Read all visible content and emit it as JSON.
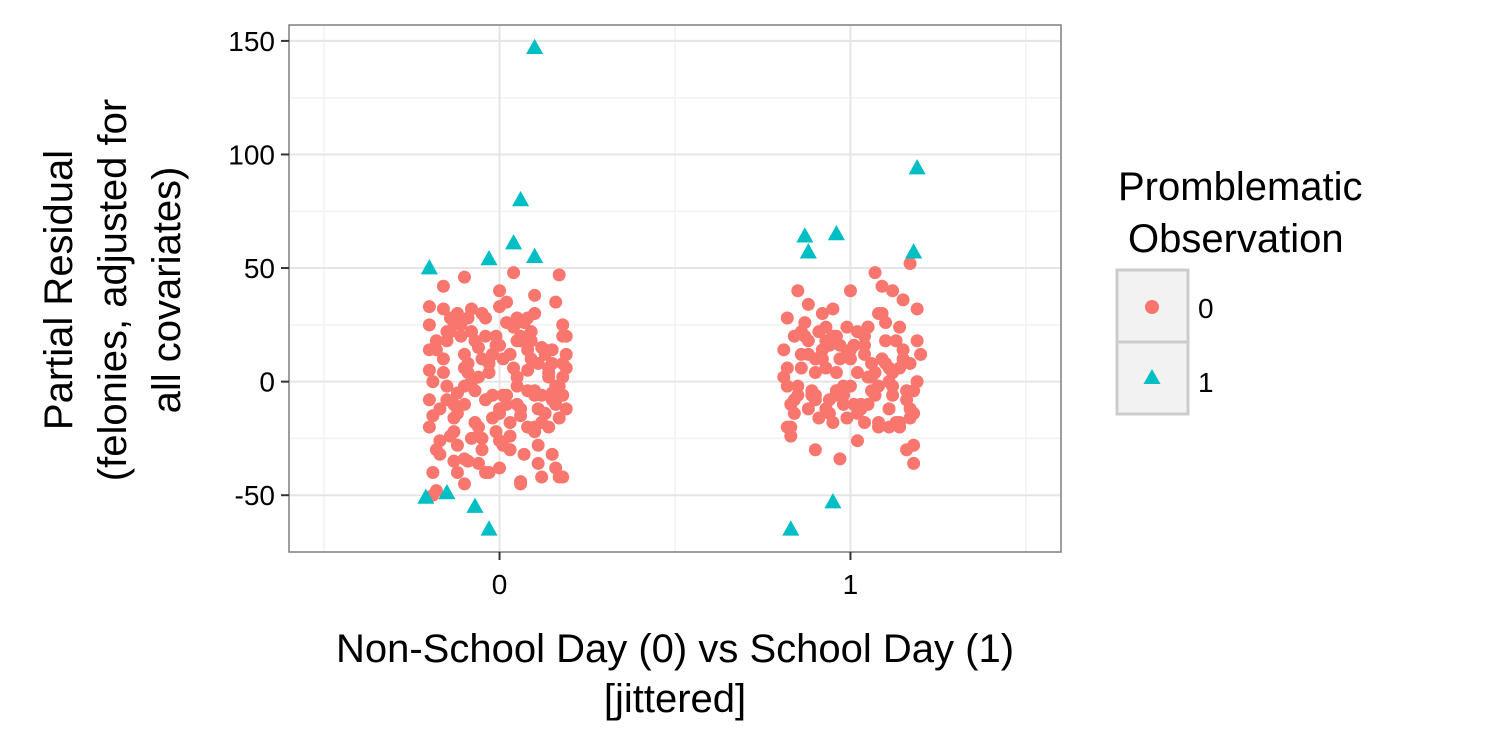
{
  "chart_data": {
    "type": "scatter",
    "title": "",
    "xlabel_lines": [
      "Non-School Day (0) vs School Day (1)",
      "[jittered]"
    ],
    "ylabel_lines": [
      "Partial Residual",
      "(felonies, adjusted for",
      "all covariates)"
    ],
    "xlim": [
      -0.6,
      1.6
    ],
    "ylim": [
      -75,
      157
    ],
    "x_ticks": [
      0,
      1
    ],
    "x_tick_labels": [
      "0",
      "1"
    ],
    "y_ticks": [
      -50,
      0,
      50,
      100,
      150
    ],
    "y_tick_labels": [
      "-50",
      "0",
      "50",
      "100",
      "150"
    ],
    "grid": true,
    "legend": {
      "title_lines": [
        "Promblematic",
        "Observation"
      ],
      "placement": "right",
      "entries": [
        {
          "label": "0",
          "color": "#F8766D",
          "shape": "circle"
        },
        {
          "label": "1",
          "color": "#00BFC4",
          "shape": "triangle"
        }
      ]
    },
    "series": [
      {
        "name": "0",
        "color": "#F8766D",
        "shape": "circle",
        "x": [
          -0.2,
          -0.18,
          -0.15,
          -0.12,
          -0.1,
          -0.08,
          -0.05,
          -0.02,
          0.0,
          0.03,
          0.05,
          0.08,
          0.1,
          0.12,
          0.15,
          0.18,
          -0.19,
          -0.16,
          -0.13,
          -0.11,
          -0.09,
          -0.06,
          -0.04,
          -0.01,
          0.01,
          0.04,
          0.06,
          0.09,
          0.11,
          0.14,
          0.16,
          0.19,
          -0.2,
          -0.17,
          -0.14,
          -0.12,
          -0.1,
          -0.07,
          -0.05,
          -0.03,
          0.0,
          0.02,
          0.05,
          0.07,
          0.1,
          0.13,
          0.15,
          0.18,
          -0.19,
          -0.16,
          -0.13,
          -0.11,
          -0.08,
          -0.06,
          -0.03,
          -0.01,
          0.02,
          0.04,
          0.07,
          0.09,
          0.12,
          0.14,
          0.17,
          0.19,
          -0.2,
          -0.18,
          -0.15,
          -0.13,
          -0.1,
          -0.08,
          -0.05,
          -0.02,
          0.01,
          0.03,
          0.06,
          0.08,
          0.11,
          0.13,
          0.16,
          0.18,
          -0.19,
          -0.17,
          -0.14,
          -0.12,
          -0.09,
          -0.07,
          -0.04,
          -0.02,
          0.0,
          0.03,
          0.05,
          0.08,
          0.1,
          0.13,
          0.15,
          0.17,
          -0.2,
          -0.16,
          -0.13,
          -0.1,
          -0.07,
          -0.04,
          -0.01,
          0.02,
          0.05,
          0.08,
          0.11,
          0.14,
          0.17,
          0.19,
          -0.18,
          -0.15,
          -0.12,
          -0.09,
          -0.06,
          -0.03,
          0.0,
          0.03,
          0.06,
          0.09,
          0.12,
          0.15,
          0.18,
          -0.17,
          -0.13,
          -0.1,
          -0.06,
          -0.02,
          0.02,
          0.06,
          0.1,
          0.14,
          0.18,
          -0.19,
          -0.14,
          -0.09,
          -0.04,
          0.01,
          0.06,
          0.11,
          0.16,
          -0.2,
          -0.15,
          -0.1,
          -0.05,
          0.0,
          0.05,
          0.1,
          0.15,
          0.19,
          -0.18,
          -0.12,
          -0.06,
          0.0,
          0.06,
          0.12,
          0.18,
          -0.16,
          -0.08,
          0.0,
          0.08,
          0.16,
          -0.2,
          -0.1,
          0.04,
          0.1,
          0.17,
          0.82,
          0.85,
          0.88,
          0.9,
          0.93,
          0.95,
          0.98,
          1.0,
          1.03,
          1.05,
          1.08,
          1.1,
          1.13,
          1.15,
          1.18,
          0.83,
          0.86,
          0.89,
          0.91,
          0.94,
          0.96,
          0.99,
          1.01,
          1.04,
          1.06,
          1.09,
          1.11,
          1.14,
          1.16,
          1.19,
          0.81,
          0.84,
          0.87,
          0.9,
          0.92,
          0.95,
          0.97,
          1.0,
          1.02,
          1.05,
          1.07,
          1.1,
          1.12,
          1.15,
          1.17,
          0.82,
          0.85,
          0.88,
          0.91,
          0.93,
          0.96,
          0.98,
          1.01,
          1.03,
          1.06,
          1.08,
          1.11,
          1.13,
          1.16,
          1.18,
          0.83,
          0.86,
          0.89,
          0.92,
          0.94,
          0.97,
          0.99,
          1.02,
          1.04,
          1.07,
          1.09,
          1.12,
          1.14,
          1.17,
          1.19,
          0.81,
          0.84,
          0.87,
          0.9,
          0.93,
          0.96,
          0.99,
          1.02,
          1.05,
          1.08,
          1.11,
          1.14,
          1.17,
          0.82,
          0.86,
          0.9,
          0.94,
          0.98,
          1.02,
          1.06,
          1.1,
          1.14,
          1.18,
          0.84,
          0.88,
          0.92,
          0.96,
          1.0,
          1.04,
          1.08,
          1.12,
          1.16,
          1.2,
          0.83,
          0.9,
          0.97,
          1.04,
          1.11,
          1.18,
          0.85,
          0.95,
          1.05,
          1.15,
          0.88,
          0.93,
          1.0,
          1.07,
          1.12,
          1.17,
          0.82,
          0.96,
          1.09,
          1.19
        ],
        "y": [
          25,
          -30,
          18,
          30,
          -10,
          22,
          -25,
          12,
          33,
          -18,
          28,
          5,
          -20,
          15,
          -5,
          8,
          -40,
          10,
          -22,
          25,
          -35,
          15,
          -8,
          20,
          -28,
          6,
          -15,
          22,
          -12,
          2,
          -38,
          12,
          5,
          -26,
          28,
          -5,
          -45,
          18,
          -30,
          8,
          -12,
          35,
          -2,
          26,
          -22,
          12,
          -8,
          20,
          -15,
          32,
          -10,
          20,
          -25,
          2,
          -40,
          16,
          -6,
          24,
          -32,
          10,
          -18,
          4,
          -42,
          6,
          -20,
          14,
          -8,
          26,
          -34,
          0,
          30,
          -16,
          10,
          -24,
          20,
          -4,
          -36,
          14,
          -10,
          25,
          0,
          -12,
          22,
          -28,
          8,
          -18,
          28,
          -6,
          16,
          -30,
          2,
          -20,
          30,
          -14,
          8,
          -2,
          -8,
          4,
          -35,
          12,
          -4,
          20,
          -22,
          26,
          -10,
          14,
          -28,
          6,
          -16,
          20,
          18,
          -2,
          -14,
          28,
          -20,
          4,
          -26,
          12,
          -12,
          18,
          -6,
          -32,
          2,
          -32,
          -16,
          6,
          -24,
          12,
          -10,
          18,
          -4,
          -20,
          -6,
          -50,
          -24,
          4,
          -40,
          -6,
          -44,
          8,
          -2,
          14,
          22,
          -2,
          10,
          -14,
          18,
          -6,
          14,
          -12,
          -48,
          -40,
          -36,
          -38,
          -45,
          -42,
          -42,
          42,
          32,
          40,
          28,
          35,
          33,
          46,
          48,
          38,
          47,
          6,
          -2,
          18,
          10,
          -12,
          20,
          -6,
          14,
          -10,
          24,
          -2,
          8,
          -18,
          10,
          -4,
          -20,
          12,
          -6,
          22,
          -14,
          4,
          24,
          -10,
          16,
          -4,
          30,
          -12,
          6,
          -8,
          18,
          2,
          -14,
          20,
          -8,
          14,
          -18,
          10,
          -2,
          22,
          -10,
          4,
          26,
          -6,
          14,
          -16,
          28,
          -6,
          12,
          -16,
          6,
          20,
          -2,
          16,
          -12,
          8,
          -20,
          0,
          18,
          -4,
          -14,
          -10,
          22,
          -4,
          10,
          -8,
          16,
          -16,
          4,
          20,
          -6,
          10,
          -2,
          24,
          8,
          0,
          14,
          -8,
          26,
          4,
          18,
          -4,
          12,
          -14,
          2,
          -18,
          6,
          -20,
          -12,
          -20,
          6,
          -6,
          16,
          -10,
          -26,
          2,
          18,
          -18,
          -28,
          20,
          -12,
          30,
          -4,
          10,
          12,
          30,
          4,
          -30,
          12,
          -24,
          -30,
          -34,
          -18,
          -20,
          -36,
          40,
          32,
          24,
          36,
          34,
          24,
          40,
          48,
          40,
          52,
          -2,
          -6,
          42,
          32
        ]
      },
      {
        "name": "1",
        "color": "#00BFC4",
        "shape": "triangle",
        "x": [
          0.1,
          0.06,
          0.04,
          0.1,
          -0.03,
          -0.2,
          -0.21,
          -0.15,
          -0.07,
          -0.03,
          0.87,
          0.88,
          0.96,
          1.19,
          1.18,
          0.95,
          0.83
        ],
        "y": [
          147,
          80,
          61,
          55,
          54,
          50,
          -51,
          -49,
          -55,
          -65,
          64,
          57,
          65,
          94,
          57,
          -53,
          -65
        ]
      }
    ]
  }
}
